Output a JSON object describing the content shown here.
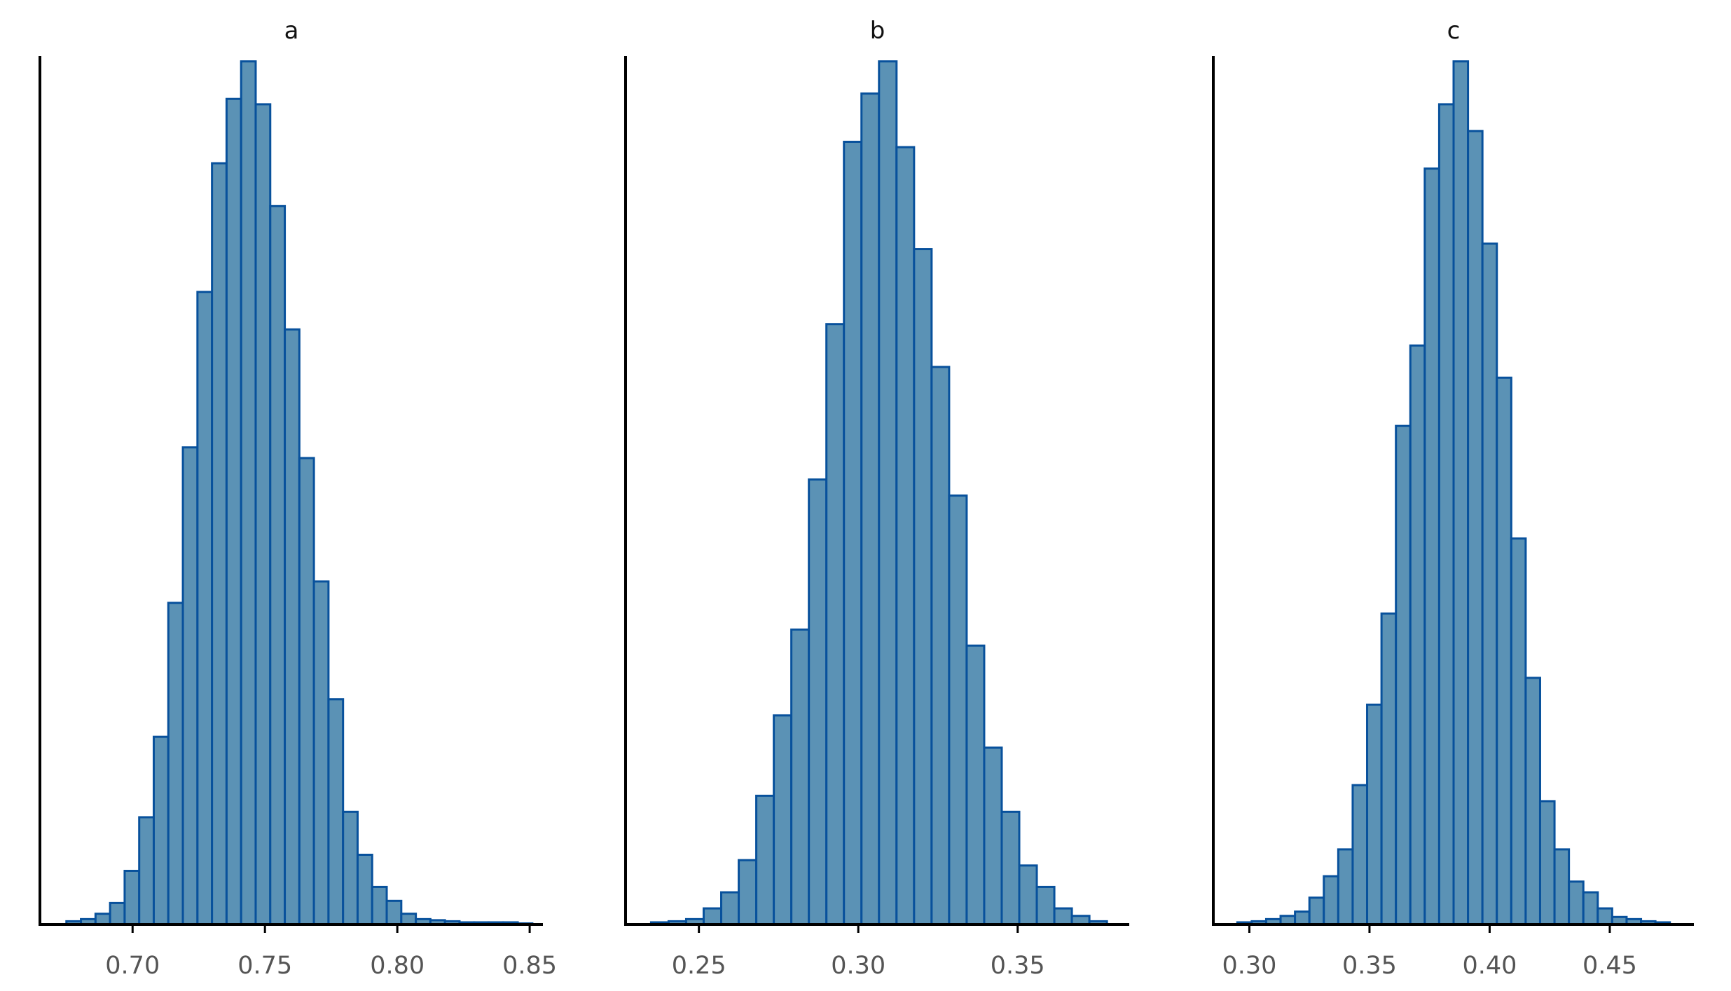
{
  "chart_data": [
    {
      "type": "bar",
      "title": "a",
      "xlabel": "",
      "ylabel": "",
      "xlim": [
        0.665,
        0.855
      ],
      "ylim": [
        0,
        81
      ],
      "xticks": [
        0.7,
        0.75,
        0.8,
        0.85
      ],
      "xtick_labels": [
        "0.70",
        "0.75",
        "0.80",
        "0.85"
      ],
      "grid": false,
      "bin_edges": [
        0.675,
        0.6805,
        0.686,
        0.6915,
        0.697,
        0.7025,
        0.708,
        0.7135,
        0.719,
        0.7245,
        0.73,
        0.7355,
        0.741,
        0.7465,
        0.752,
        0.7575,
        0.763,
        0.7685,
        0.774,
        0.7795,
        0.785,
        0.7905,
        0.796,
        0.8015,
        0.807,
        0.8125,
        0.818,
        0.8235,
        0.829,
        0.8345,
        0.84,
        0.8455,
        0.851
      ],
      "values": [
        0.3,
        0.5,
        1.0,
        2.0,
        5.0,
        10.0,
        17.5,
        30.0,
        44.5,
        59.0,
        71.0,
        77.0,
        80.5,
        76.5,
        67.0,
        55.5,
        43.5,
        32.0,
        21.0,
        10.5,
        6.5,
        3.5,
        2.2,
        1.0,
        0.5,
        0.4,
        0.3,
        0.2,
        0.2,
        0.2,
        0.2,
        0.1
      ]
    },
    {
      "type": "bar",
      "title": "b",
      "xlabel": "",
      "ylabel": "",
      "xlim": [
        0.227,
        0.385
      ],
      "ylim": [
        0,
        81
      ],
      "xticks": [
        0.25,
        0.3,
        0.35
      ],
      "xtick_labels": [
        "0.25",
        "0.30",
        "0.35"
      ],
      "grid": false,
      "bin_edges": [
        0.235,
        0.2405,
        0.246,
        0.2515,
        0.257,
        0.2625,
        0.268,
        0.2735,
        0.279,
        0.2845,
        0.29,
        0.2955,
        0.301,
        0.3065,
        0.312,
        0.3175,
        0.323,
        0.3285,
        0.334,
        0.3395,
        0.345,
        0.3505,
        0.356,
        0.3615,
        0.367,
        0.3725,
        0.378
      ],
      "values": [
        0.2,
        0.3,
        0.5,
        1.5,
        3.0,
        6.0,
        12.0,
        19.5,
        27.5,
        41.5,
        56.0,
        73.0,
        77.5,
        80.5,
        72.5,
        63.0,
        52.0,
        40.0,
        26.0,
        16.5,
        10.5,
        5.5,
        3.5,
        1.5,
        0.8,
        0.3
      ]
    },
    {
      "type": "bar",
      "title": "c",
      "xlabel": "",
      "ylabel": "",
      "xlim": [
        0.285,
        0.485
      ],
      "ylim": [
        0,
        81
      ],
      "xticks": [
        0.3,
        0.35,
        0.4,
        0.45
      ],
      "xtick_labels": [
        "0.30",
        "0.35",
        "0.40",
        "0.45"
      ],
      "grid": false,
      "bin_edges": [
        0.295,
        0.301,
        0.307,
        0.313,
        0.319,
        0.325,
        0.331,
        0.337,
        0.343,
        0.349,
        0.355,
        0.361,
        0.367,
        0.373,
        0.379,
        0.385,
        0.391,
        0.397,
        0.403,
        0.409,
        0.415,
        0.421,
        0.427,
        0.433,
        0.439,
        0.445,
        0.451,
        0.457,
        0.463,
        0.469,
        0.475
      ],
      "values": [
        0.2,
        0.3,
        0.5,
        0.8,
        1.2,
        2.5,
        4.5,
        7.0,
        13.0,
        20.5,
        29.0,
        46.5,
        54.0,
        70.5,
        76.5,
        80.5,
        74.0,
        63.5,
        51.0,
        36.0,
        23.0,
        11.5,
        7.0,
        4.0,
        3.0,
        1.5,
        0.7,
        0.5,
        0.3,
        0.2
      ]
    }
  ],
  "colors": {
    "bar_fill": "#5b92b5",
    "bar_edge": "#08519c",
    "axis": "#000000",
    "tick_text": "#555555"
  }
}
